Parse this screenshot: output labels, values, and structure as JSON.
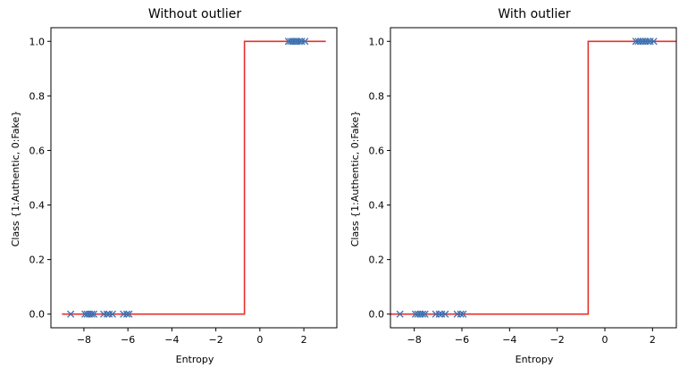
{
  "colors": {
    "step_line": "#e8302a",
    "markers": "#3b6fb0",
    "axes": "#000000"
  },
  "chart_data": [
    {
      "type": "line",
      "title": "Without outlier",
      "xlabel": "Entropy",
      "ylabel": "Class {1:Authentic, 0:Fake}",
      "xlim": [
        -9.5,
        3.5
      ],
      "ylim": [
        -0.05,
        1.05
      ],
      "xticks": [
        -8,
        -6,
        -4,
        -2,
        0,
        2
      ],
      "yticks": [
        0.0,
        0.2,
        0.4,
        0.6,
        0.8,
        1.0
      ],
      "xtick_labels": [
        "−8",
        "−6",
        "−4",
        "−2",
        "0",
        "2"
      ],
      "ytick_labels": [
        "0.0",
        "0.2",
        "0.4",
        "0.6",
        "0.8",
        "1.0"
      ],
      "grid": false,
      "series": [
        {
          "kind": "step",
          "x": [
            -9.0,
            -0.7,
            -0.7,
            3.0
          ],
          "y": [
            0,
            0,
            1,
            1
          ]
        },
        {
          "kind": "scatter",
          "marker": "x",
          "x": [
            -8.6,
            -7.95,
            -7.85,
            -7.75,
            -7.65,
            -7.55,
            -7.1,
            -6.95,
            -6.85,
            -6.7,
            -6.2,
            -6.05,
            -5.95,
            1.3,
            1.4,
            1.5,
            1.6,
            1.7,
            1.8,
            1.9,
            2.05
          ],
          "y": [
            0,
            0,
            0,
            0,
            0,
            0,
            0,
            0,
            0,
            0,
            0,
            0,
            0,
            1,
            1,
            1,
            1,
            1,
            1,
            1,
            1
          ]
        }
      ]
    },
    {
      "type": "line",
      "title": "With outlier",
      "xlabel": "Entropy",
      "ylabel": "Class {1:Authentic, 0:Fake}",
      "xlim": [
        -9.0,
        3.0
      ],
      "ylim": [
        -0.05,
        1.05
      ],
      "xticks": [
        -8,
        -6,
        -4,
        -2,
        0,
        2
      ],
      "yticks": [
        0.0,
        0.2,
        0.4,
        0.6,
        0.8,
        1.0
      ],
      "xtick_labels": [
        "−8",
        "−6",
        "−4",
        "−2",
        "0",
        "2"
      ],
      "ytick_labels": [
        "0.0",
        "0.2",
        "0.4",
        "0.6",
        "0.8",
        "1.0"
      ],
      "grid": false,
      "series": [
        {
          "kind": "step",
          "x": [
            -9.0,
            -0.7,
            -0.7,
            3.0
          ],
          "y": [
            0,
            0,
            1,
            1
          ]
        },
        {
          "kind": "scatter",
          "marker": "x",
          "x": [
            -8.6,
            -7.95,
            -7.85,
            -7.75,
            -7.65,
            -7.55,
            -7.1,
            -6.95,
            -6.85,
            -6.7,
            -6.2,
            -6.05,
            -5.95,
            1.3,
            1.4,
            1.5,
            1.6,
            1.7,
            1.8,
            1.9,
            2.05
          ],
          "y": [
            0,
            0,
            0,
            0,
            0,
            0,
            0,
            0,
            0,
            0,
            0,
            0,
            0,
            1,
            1,
            1,
            1,
            1,
            1,
            1,
            1
          ]
        }
      ]
    }
  ]
}
